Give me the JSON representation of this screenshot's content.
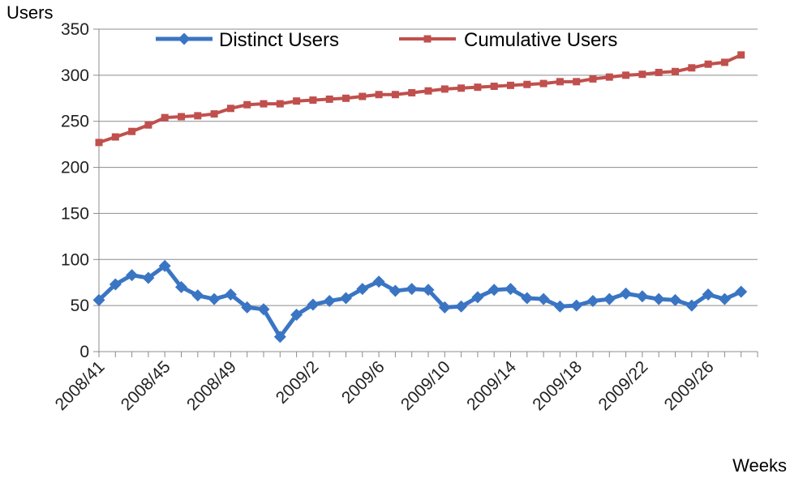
{
  "chart_data": {
    "type": "line",
    "ylabel": "Users",
    "xlabel": "Weeks",
    "ylim": [
      0,
      350
    ],
    "yticks": [
      0,
      50,
      100,
      150,
      200,
      250,
      300,
      350
    ],
    "grid": "horizontal",
    "legend": "top",
    "x": [
      "2008/41",
      "2008/42",
      "2008/43",
      "2008/44",
      "2008/45",
      "2008/46",
      "2008/47",
      "2008/48",
      "2008/49",
      "2008/50",
      "2008/51",
      "2008/52",
      "2009/1",
      "2009/2",
      "2009/3",
      "2009/4",
      "2009/5",
      "2009/6",
      "2009/7",
      "2009/8",
      "2009/9",
      "2009/10",
      "2009/11",
      "2009/12",
      "2009/13",
      "2009/14",
      "2009/15",
      "2009/16",
      "2009/17",
      "2009/18",
      "2009/19",
      "2009/20",
      "2009/21",
      "2009/22",
      "2009/23",
      "2009/24",
      "2009/25",
      "2009/26",
      "2009/27",
      "2009/28",
      "2009/29"
    ],
    "xtick_labels": [
      "2008/41",
      "2008/45",
      "2008/49",
      "2009/2",
      "2009/6",
      "2009/10",
      "2009/14",
      "2009/18",
      "2009/22",
      "2009/26"
    ],
    "series": [
      {
        "name": "Distinct Users",
        "color": "#3a75c4",
        "marker": "diamond",
        "values": [
          56,
          73,
          83,
          80,
          93,
          70,
          61,
          57,
          62,
          48,
          46,
          16,
          40,
          51,
          55,
          58,
          68,
          76,
          66,
          68,
          67,
          48,
          49,
          59,
          67,
          68,
          58,
          57,
          49,
          50,
          55,
          57,
          63,
          60,
          57,
          56,
          50,
          62,
          57,
          65,
          null
        ]
      },
      {
        "name": "Cumulative Users",
        "color": "#c0504d",
        "marker": "square",
        "values": [
          227,
          233,
          239,
          246,
          254,
          255,
          256,
          258,
          264,
          268,
          269,
          269,
          272,
          273,
          274,
          275,
          277,
          279,
          279,
          281,
          283,
          285,
          286,
          287,
          288,
          289,
          290,
          291,
          293,
          293,
          296,
          298,
          300,
          301,
          303,
          304,
          308,
          312,
          314,
          322,
          null
        ]
      }
    ]
  }
}
